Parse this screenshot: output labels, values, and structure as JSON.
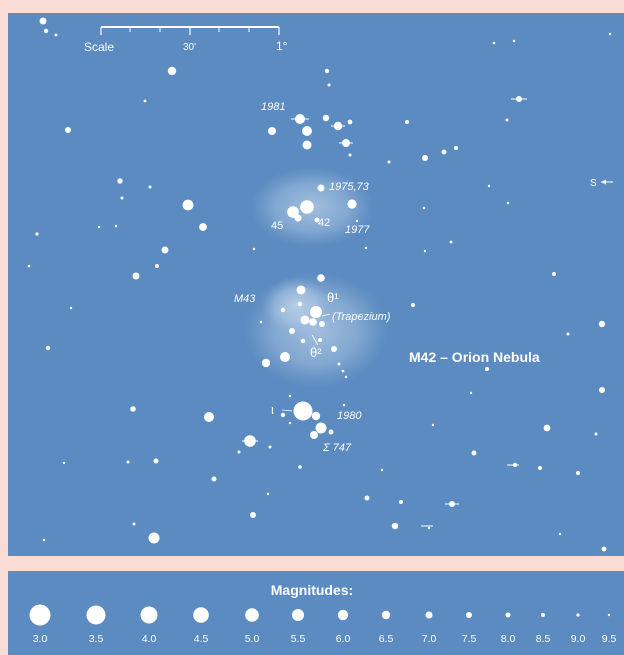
{
  "scale": {
    "label": "Scale",
    "mid_tick": "30'",
    "end_tick": "1°"
  },
  "labels": {
    "star_1981": "1981",
    "star_1975_73": "1975,73",
    "star_45": "45",
    "star_42": "42",
    "star_1977": "1977",
    "m43": "M43",
    "theta1": "θ¹",
    "trapezium": "(Trapezium)",
    "theta2": "θ²",
    "m42": "M42 – Orion Nebula",
    "iota": "ι",
    "star_1980": "1980",
    "sigma747": "Σ 747",
    "south": "S"
  },
  "legend": {
    "title": "Magnitudes:",
    "magnitudes": [
      "3.0",
      "3.5",
      "4.0",
      "4.5",
      "5.0",
      "5.5",
      "6.0",
      "6.5",
      "7.0",
      "7.5",
      "8.0",
      "8.5",
      "9.0",
      "9.5"
    ]
  },
  "colors": {
    "sky": "#5b8bc1",
    "frame": "#fadcd6",
    "stars": "#ffffff",
    "nebula": "#c9dcef"
  }
}
